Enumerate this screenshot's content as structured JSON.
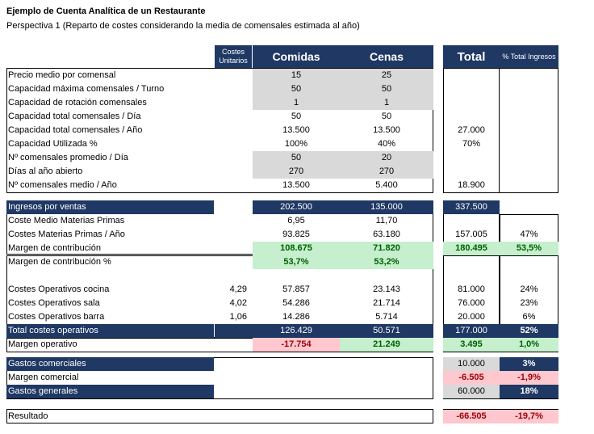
{
  "title": "Ejemplo de Cuenta Analítica de un Restaurante",
  "subtitle": "Perspectiva 1 (Reparto de costes considerando la media de comensales estimada al año)",
  "headers": {
    "costes_unitarios": "Costes Unitarios",
    "comidas": "Comidas",
    "cenas": "Cenas",
    "total": "Total",
    "pct_total": "% Total Ingresos"
  },
  "capacity_rows": [
    {
      "label": "Precio medio por comensal",
      "comidas": "15",
      "cenas": "25",
      "total": ""
    },
    {
      "label": "Capacidad máxima comensales / Turno",
      "comidas": "50",
      "cenas": "50",
      "total": ""
    },
    {
      "label": "Capacidad de rotación comensales",
      "comidas": "1",
      "cenas": "1",
      "total": ""
    },
    {
      "label": "Capacidad total comensales / Día",
      "comidas": "50",
      "cenas": "50",
      "total": ""
    },
    {
      "label": "Capacidad total comensales / Año",
      "comidas": "13.500",
      "cenas": "13.500",
      "total": "27.000"
    },
    {
      "label": "Capacidad Utilizada %",
      "comidas": "100%",
      "cenas": "40%",
      "total": "70%"
    },
    {
      "label": "Nº comensales promedio / Día",
      "comidas": "50",
      "cenas": "20",
      "total": ""
    },
    {
      "label": "Días al año abierto",
      "comidas": "270",
      "cenas": "270",
      "total": ""
    },
    {
      "label": "Nº comensales medio / Año",
      "comidas": "13.500",
      "cenas": "5.400",
      "total": "18.900"
    }
  ],
  "ingresos": {
    "label": "Ingresos por ventas",
    "comidas": "202.500",
    "cenas": "135.000",
    "total": "337.500"
  },
  "coste_rows": [
    {
      "label": "Coste Medio Materias Primas",
      "comidas": "6,95",
      "cenas": "11,70",
      "total": "",
      "pct": ""
    },
    {
      "label": "Costes Materias Primas / Año",
      "comidas": "93.825",
      "cenas": "63.180",
      "total": "157.005",
      "pct": "47%"
    }
  ],
  "margen_contribucion": {
    "label": "Margen de contribución",
    "comidas": "108.675",
    "cenas": "71.820",
    "total": "180.495",
    "pct": "53,5%"
  },
  "margen_contribucion_pct": {
    "label": "Margen de contribución %",
    "comidas": "53,7%",
    "cenas": "53,2%"
  },
  "op_rows": [
    {
      "label": "Costes Operativos cocina",
      "cu": "4,29",
      "comidas": "57.857",
      "cenas": "23.143",
      "total": "81.000",
      "pct": "24%"
    },
    {
      "label": "Costes Operativos sala",
      "cu": "4,02",
      "comidas": "54.286",
      "cenas": "21.714",
      "total": "76.000",
      "pct": "23%"
    },
    {
      "label": "Costes Operativos barra",
      "cu": "1,06",
      "comidas": "14.286",
      "cenas": "5.714",
      "total": "20.000",
      "pct": "6%"
    }
  ],
  "total_op": {
    "label": "Total costes operativos",
    "comidas": "126.429",
    "cenas": "50.571",
    "total": "177.000",
    "pct": "52%"
  },
  "margen_operativo": {
    "label": "Margen operativo",
    "comidas": "-17.754",
    "cenas": "21.249",
    "total": "3.495",
    "pct": "1,0%"
  },
  "gastos_comerciales": {
    "label": "Gastos comerciales",
    "total": "10.000",
    "pct": "3%"
  },
  "margen_comercial": {
    "label": "Margen comercial",
    "total": "-6.505",
    "pct": "-1,9%"
  },
  "gastos_generales": {
    "label": "Gastos generales",
    "total": "60.000",
    "pct": "18%"
  },
  "resultado": {
    "label": "Resultado",
    "total": "-66.505",
    "pct": "-19,7%"
  },
  "colors": {
    "navy": "#1f3864",
    "gray": "#d9d9d9",
    "green_bg": "#c6efce",
    "green_fg": "#006100",
    "red_bg": "#ffc7ce",
    "red_fg": "#9c0006"
  }
}
